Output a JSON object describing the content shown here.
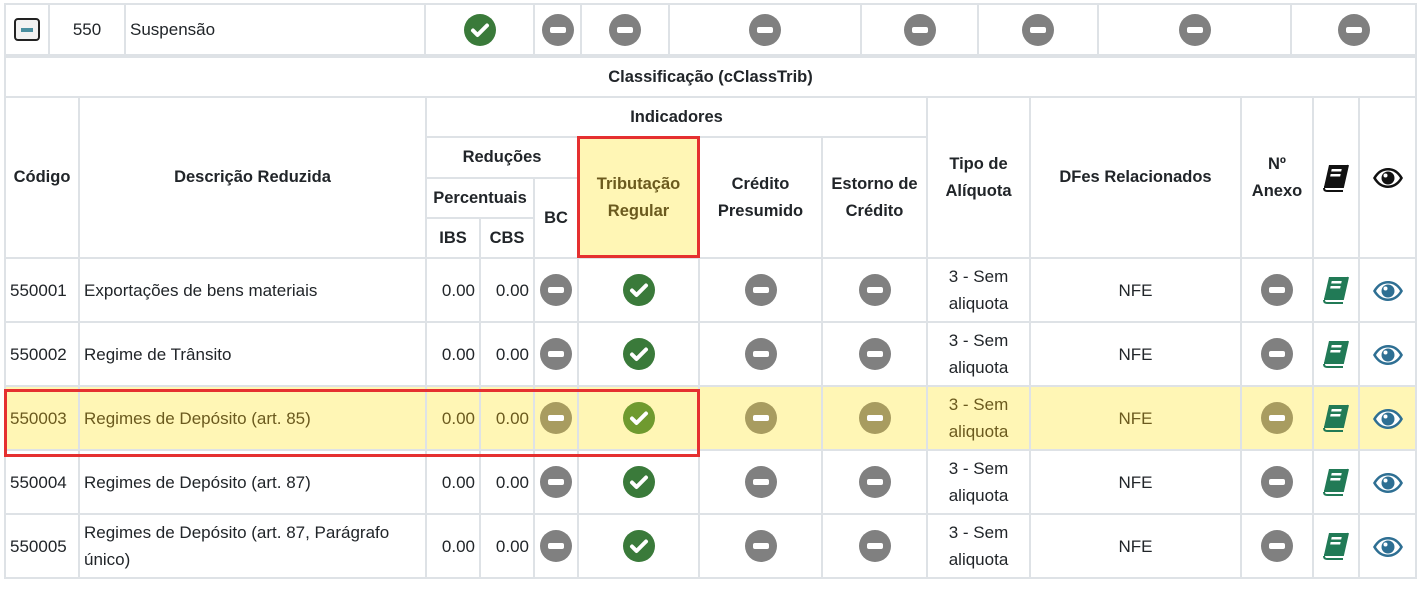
{
  "group": {
    "code": "550",
    "name": "Suspensão",
    "indicators": [
      "check",
      "minus",
      "minus",
      "minus",
      "minus",
      "minus",
      "minus",
      "minus"
    ]
  },
  "classificacao": {
    "title": "Classificação (cClassTrib)",
    "headers": {
      "codigo": "Código",
      "descricao": "Descrição Reduzida",
      "indicadores": "Indicadores",
      "reducoes": "Reduções",
      "percentuais": "Percentuais",
      "ibs": "IBS",
      "cbs": "CBS",
      "bc": "BC",
      "tributacao": "Tributação Regular",
      "credito_presumido": "Crédito Presumido",
      "estorno": "Estorno de Crédito",
      "tipo_aliquota": "Tipo de Alíquota",
      "dfes": "DFes Relacionados",
      "anexo": "Nº Anexo"
    },
    "rows": [
      {
        "codigo": "550001",
        "descricao": "Exportações de bens materiais",
        "ibs": "0.00",
        "cbs": "0.00",
        "bc": "minus",
        "trib": "check",
        "cred": "minus",
        "estorno": "minus",
        "tipo": "3 - Sem aliquota",
        "dfes": "NFE",
        "anexo": "minus",
        "highlight": false
      },
      {
        "codigo": "550002",
        "descricao": "Regime de Trânsito",
        "ibs": "0.00",
        "cbs": "0.00",
        "bc": "minus",
        "trib": "check",
        "cred": "minus",
        "estorno": "minus",
        "tipo": "3 - Sem aliquota",
        "dfes": "NFE",
        "anexo": "minus",
        "highlight": false
      },
      {
        "codigo": "550003",
        "descricao": "Regimes de Depósito (art. 85)",
        "ibs": "0.00",
        "cbs": "0.00",
        "bc": "minus",
        "trib": "check",
        "cred": "minus",
        "estorno": "minus",
        "tipo": "3 - Sem aliquota",
        "dfes": "NFE",
        "anexo": "minus",
        "highlight": true
      },
      {
        "codigo": "550004",
        "descricao": "Regimes de Depósito (art. 87)",
        "ibs": "0.00",
        "cbs": "0.00",
        "bc": "minus",
        "trib": "check",
        "cred": "minus",
        "estorno": "minus",
        "tipo": "3 - Sem aliquota",
        "dfes": "NFE",
        "anexo": "minus",
        "highlight": false
      },
      {
        "codigo": "550005",
        "descricao": "Regimes de Depósito (art. 87, Parágrafo único)",
        "ibs": "0.00",
        "cbs": "0.00",
        "bc": "minus",
        "trib": "check",
        "cred": "minus",
        "estorno": "minus",
        "tipo": "3 - Sem aliquota",
        "dfes": "NFE",
        "anexo": "minus",
        "highlight": false
      }
    ]
  },
  "colors": {
    "check": "#3a7a3a",
    "minus": "#808080",
    "book": "#217a56",
    "eye": "#2e6f93",
    "highlight_bg": "#fff6b5",
    "highlight_border": "#e53030"
  }
}
